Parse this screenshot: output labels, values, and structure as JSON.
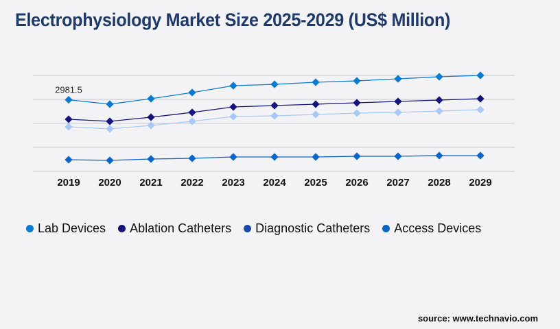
{
  "chart_data": {
    "type": "line",
    "title": "Electrophysiology Market Size 2025-2029 (US$ Million)",
    "x": [
      "2019",
      "2020",
      "2021",
      "2022",
      "2023",
      "2024",
      "2025",
      "2026",
      "2027",
      "2028",
      "2029"
    ],
    "ylim": [
      0,
      4000
    ],
    "grid": true,
    "legend_position": "bottom",
    "annotations": [
      {
        "x": "2019",
        "series": "Lab Devices",
        "text": "2981.5"
      }
    ],
    "series": [
      {
        "name": "Lab Devices",
        "color": "#0a7ad4",
        "line_color": "#0a7ad4",
        "values": [
          2981.5,
          2800,
          3029,
          3286,
          3571,
          3629,
          3714,
          3771,
          3857,
          3943,
          4000
        ]
      },
      {
        "name": "Ablation Catheters",
        "color": "#14147a",
        "line_color": "#14147a",
        "values": [
          2171,
          2086,
          2257,
          2457,
          2686,
          2743,
          2800,
          2857,
          2914,
          2971,
          3029
        ]
      },
      {
        "name": "Diagnostic Catheters",
        "color": "#1a4aaa",
        "line_color": "#a8c8f8",
        "values": [
          1857,
          1771,
          1914,
          2086,
          2286,
          2314,
          2371,
          2429,
          2457,
          2514,
          2571
        ]
      },
      {
        "name": "Access Devices",
        "color": "#0a66cc",
        "line_color": "#0a66cc",
        "values": [
          486,
          457,
          514,
          543,
          600,
          600,
          600,
          629,
          629,
          657,
          657
        ]
      }
    ]
  },
  "source": "source: www.technavio.com"
}
